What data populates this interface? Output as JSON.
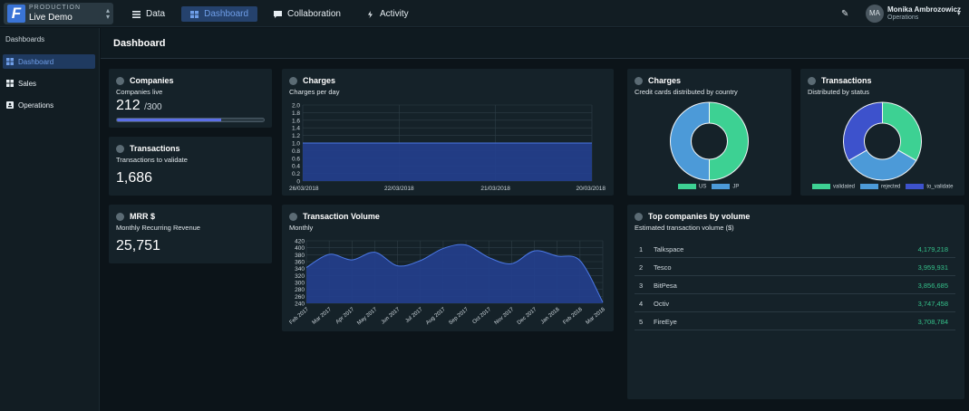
{
  "env": {
    "label": "PRODUCTION",
    "name": "Live Demo"
  },
  "nav": [
    {
      "label": "Data",
      "active": false
    },
    {
      "label": "Dashboard",
      "active": true
    },
    {
      "label": "Collaboration",
      "active": false
    },
    {
      "label": "Activity",
      "active": false
    }
  ],
  "user": {
    "initials": "MA",
    "name": "Monika Ambrozowicz",
    "role": "Operations"
  },
  "sidebar": {
    "title": "Dashboards",
    "items": [
      {
        "label": "Dashboard",
        "active": true
      },
      {
        "label": "Sales",
        "active": false
      },
      {
        "label": "Operations",
        "active": false
      }
    ]
  },
  "page": {
    "title": "Dashboard"
  },
  "cards": {
    "companies": {
      "title": "Companies",
      "subtitle": "Companies live",
      "value": "212",
      "max": "/300",
      "progress": 0.707
    },
    "transactions_validate": {
      "title": "Transactions",
      "subtitle": "Transactions to validate",
      "value": "1,686"
    },
    "mrr": {
      "title": "MRR $",
      "subtitle": "Monthly Recurring Revenue",
      "value": "25,751"
    },
    "charges_day": {
      "title": "Charges",
      "subtitle": "Charges per day"
    },
    "charges_country": {
      "title": "Charges",
      "subtitle": "Credit cards distributed by country"
    },
    "transactions_status": {
      "title": "Transactions",
      "subtitle": "Distributed by status"
    },
    "volume": {
      "title": "Transaction Volume",
      "subtitle": "Monthly"
    },
    "top": {
      "title": "Top companies by volume",
      "subtitle": "Estimated transaction volume ($)"
    }
  },
  "top_companies": [
    {
      "rank": "1",
      "name": "Talkspace",
      "value": "4,179,218"
    },
    {
      "rank": "2",
      "name": "Tesco",
      "value": "3,959,931"
    },
    {
      "rank": "3",
      "name": "BitPesa",
      "value": "3,856,685"
    },
    {
      "rank": "4",
      "name": "Octiv",
      "value": "3,747,458"
    },
    {
      "rank": "5",
      "name": "FireEye",
      "value": "3,708,784"
    }
  ],
  "colors": {
    "accent": "#3a74d6",
    "green": "#3dd193",
    "blue": "#4c9ad8",
    "indigo": "#3d52cc",
    "value_green": "#35c08a"
  },
  "chart_data": [
    {
      "type": "area",
      "title": "Charges per day",
      "x": [
        "26/03/2018",
        "22/03/2018",
        "21/03/2018",
        "20/03/2018"
      ],
      "values": [
        1.0,
        1.0,
        1.0,
        1.0
      ],
      "yticks": [
        "0",
        "0.2",
        "0.4",
        "0.6",
        "0.8",
        "1.0",
        "1.2",
        "1.4",
        "1.6",
        "1.8",
        "2.0"
      ],
      "ylim": [
        0,
        2.0
      ],
      "grid": true
    },
    {
      "type": "pie",
      "title": "Credit cards distributed by country",
      "categories": [
        "US",
        "JP"
      ],
      "values": [
        50,
        50
      ],
      "colors": [
        "#3dd193",
        "#4c9ad8"
      ],
      "legend": "bottom"
    },
    {
      "type": "pie",
      "title": "Distributed by status",
      "categories": [
        "validated",
        "rejected",
        "to_validate"
      ],
      "values": [
        33.3,
        33.4,
        33.3
      ],
      "colors": [
        "#3dd193",
        "#4c9ad8",
        "#3d52cc"
      ],
      "legend": "bottom"
    },
    {
      "type": "area",
      "title": "Monthly",
      "categories": [
        "Feb 2017",
        "Mar 2017",
        "Apr 2017",
        "May 2017",
        "Jun 2017",
        "Jul 2017",
        "Aug 2017",
        "Sep 2017",
        "Oct 2017",
        "Nov 2017",
        "Dec 2017",
        "Jan 2018",
        "Feb 2018",
        "Mar 2018"
      ],
      "values": [
        343,
        381,
        365,
        387,
        348,
        363,
        398,
        408,
        372,
        354,
        391,
        376,
        363,
        243
      ],
      "yticks": [
        "240",
        "260",
        "280",
        "300",
        "320",
        "340",
        "360",
        "380",
        "400",
        "420"
      ],
      "ylim": [
        240,
        420
      ],
      "grid": true
    }
  ]
}
